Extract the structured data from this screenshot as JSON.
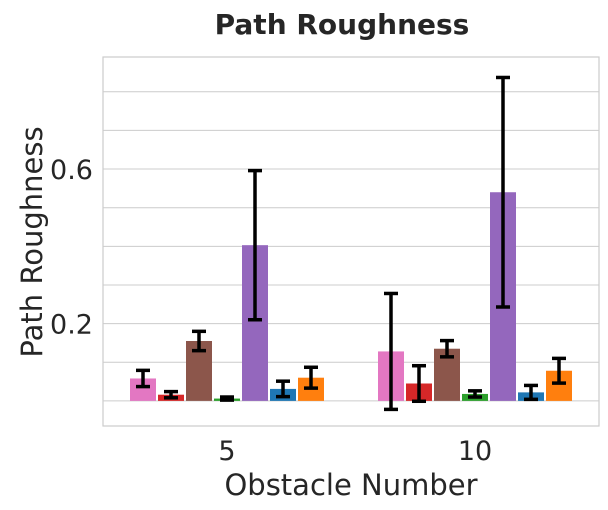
{
  "chart_data": {
    "type": "bar",
    "title": "Path Roughness",
    "xlabel": "Obstacle Number",
    "ylabel": "Path Roughness",
    "categories": [
      "5",
      "10"
    ],
    "ylim": [
      -0.065,
      0.89
    ],
    "yticks": [
      0.2,
      0.6
    ],
    "ytick_labels": [
      "0.2",
      "0.6"
    ],
    "grid": true,
    "legend": "none",
    "series": [
      {
        "color": "#e377c2",
        "values": [
          0.058,
          0.128
        ],
        "errors": [
          0.021,
          0.15
        ]
      },
      {
        "color": "#d62728",
        "values": [
          0.016,
          0.045
        ],
        "errors": [
          0.008,
          0.046
        ]
      },
      {
        "color": "#8c564b",
        "values": [
          0.155,
          0.135
        ],
        "errors": [
          0.025,
          0.021
        ]
      },
      {
        "color": "#2ca02c",
        "values": [
          0.006,
          0.018
        ],
        "errors": [
          0.004,
          0.008
        ]
      },
      {
        "color": "#9467bd",
        "values": [
          0.403,
          0.54
        ],
        "errors": [
          0.193,
          0.297
        ]
      },
      {
        "color": "#1f77b4",
        "values": [
          0.031,
          0.022
        ],
        "errors": [
          0.02,
          0.018
        ]
      },
      {
        "color": "#ff7f0e",
        "values": [
          0.06,
          0.078
        ],
        "errors": [
          0.027,
          0.032
        ]
      }
    ]
  }
}
